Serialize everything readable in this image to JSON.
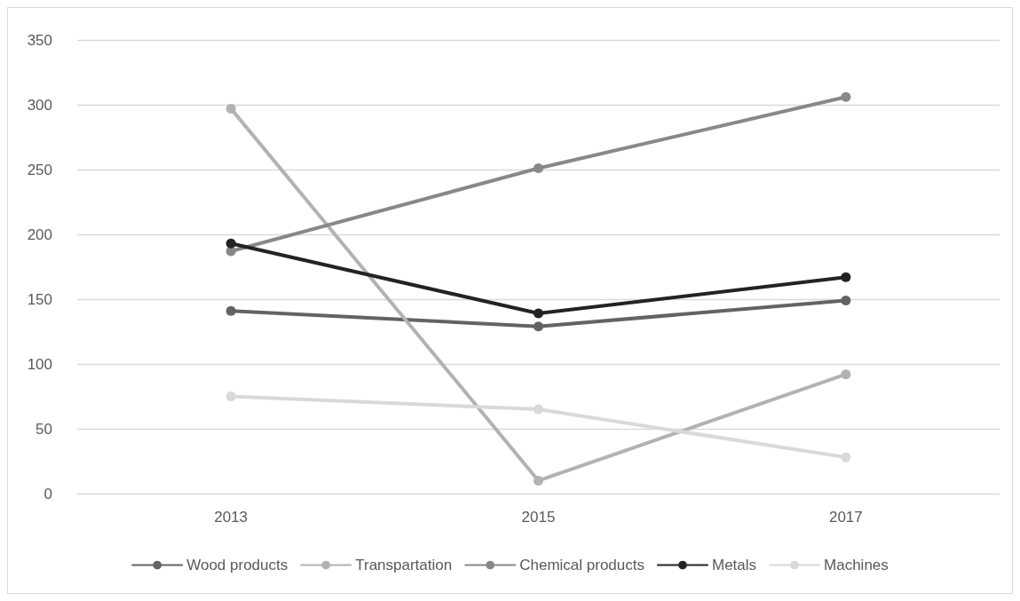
{
  "chart_data": {
    "type": "line",
    "categories": [
      "2013",
      "2015",
      "2017"
    ],
    "series": [
      {
        "name": "Wood products",
        "color": "#636363",
        "values": [
          141,
          129,
          149
        ]
      },
      {
        "name": "Transpartation",
        "color": "#b2b2b2",
        "values": [
          297,
          10,
          92
        ]
      },
      {
        "name": "Chemical products",
        "color": "#888888",
        "values": [
          187,
          251,
          306
        ]
      },
      {
        "name": "Metals",
        "color": "#232323",
        "values": [
          193,
          139,
          167
        ]
      },
      {
        "name": "Machines",
        "color": "#d9d9d9",
        "values": [
          75,
          65,
          28
        ]
      }
    ],
    "ylim": [
      0,
      350
    ],
    "yticks": [
      0,
      50,
      100,
      150,
      200,
      250,
      300,
      350
    ],
    "grid": "y",
    "legend": "bottom",
    "marker": "circle",
    "line_style": "solid"
  }
}
